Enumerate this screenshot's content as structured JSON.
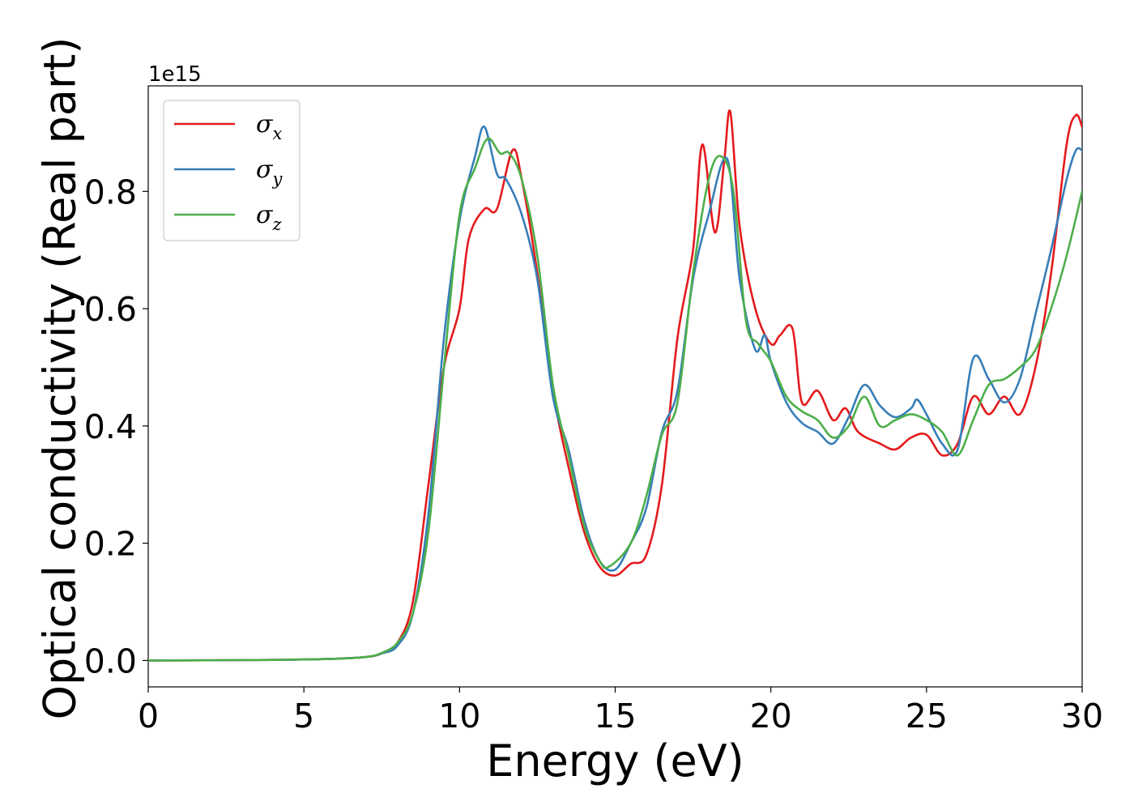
{
  "chart_data": {
    "type": "line",
    "xlabel": "Energy (eV)",
    "ylabel": "Optical conductivity (Real part)",
    "y_offset_label": "1e15",
    "xlim": [
      0,
      30
    ],
    "ylim": [
      -0.045,
      0.98
    ],
    "x_ticks": [
      0,
      5,
      10,
      15,
      20,
      25,
      30
    ],
    "x_tick_labels": [
      "0",
      "5",
      "10",
      "15",
      "20",
      "25",
      "30"
    ],
    "y_ticks": [
      0.0,
      0.2,
      0.4,
      0.6,
      0.8
    ],
    "y_tick_labels": [
      "0.0",
      "0.2",
      "0.4",
      "0.6",
      "0.8"
    ],
    "grid": false,
    "legend_position": "top-left",
    "series": [
      {
        "name": "σ",
        "subscript": "x",
        "color": "#e41a1c",
        "points": [
          [
            0,
            0
          ],
          [
            4,
            0.001
          ],
          [
            6,
            0.003
          ],
          [
            7,
            0.006
          ],
          [
            7.5,
            0.012
          ],
          [
            8,
            0.03
          ],
          [
            8.5,
            0.1
          ],
          [
            9,
            0.3
          ],
          [
            9.5,
            0.5
          ],
          [
            10,
            0.6
          ],
          [
            10.3,
            0.72
          ],
          [
            10.8,
            0.77
          ],
          [
            11.2,
            0.77
          ],
          [
            11.7,
            0.87
          ],
          [
            12,
            0.82
          ],
          [
            12.5,
            0.66
          ],
          [
            13,
            0.46
          ],
          [
            13.5,
            0.33
          ],
          [
            14,
            0.22
          ],
          [
            14.5,
            0.16
          ],
          [
            15,
            0.145
          ],
          [
            15.5,
            0.165
          ],
          [
            16,
            0.18
          ],
          [
            16.5,
            0.3
          ],
          [
            17,
            0.55
          ],
          [
            17.5,
            0.7
          ],
          [
            17.8,
            0.88
          ],
          [
            18.2,
            0.73
          ],
          [
            18.5,
            0.85
          ],
          [
            18.7,
            0.935
          ],
          [
            19,
            0.74
          ],
          [
            19.5,
            0.6
          ],
          [
            20,
            0.54
          ],
          [
            20.3,
            0.555
          ],
          [
            20.7,
            0.565
          ],
          [
            21,
            0.44
          ],
          [
            21.5,
            0.46
          ],
          [
            22,
            0.41
          ],
          [
            22.4,
            0.43
          ],
          [
            22.8,
            0.39
          ],
          [
            23.5,
            0.37
          ],
          [
            24,
            0.36
          ],
          [
            24.5,
            0.38
          ],
          [
            25,
            0.385
          ],
          [
            25.5,
            0.35
          ],
          [
            26,
            0.37
          ],
          [
            26.5,
            0.45
          ],
          [
            27,
            0.42
          ],
          [
            27.5,
            0.45
          ],
          [
            28,
            0.42
          ],
          [
            28.5,
            0.5
          ],
          [
            29,
            0.66
          ],
          [
            29.5,
            0.88
          ],
          [
            29.8,
            0.93
          ],
          [
            30,
            0.91
          ]
        ]
      },
      {
        "name": "σ",
        "subscript": "y",
        "color": "#377eb8",
        "points": [
          [
            0,
            0
          ],
          [
            4,
            0.001
          ],
          [
            6,
            0.003
          ],
          [
            7,
            0.006
          ],
          [
            7.5,
            0.012
          ],
          [
            8,
            0.025
          ],
          [
            8.5,
            0.08
          ],
          [
            9,
            0.25
          ],
          [
            9.5,
            0.55
          ],
          [
            10,
            0.75
          ],
          [
            10.5,
            0.86
          ],
          [
            10.8,
            0.91
          ],
          [
            11.2,
            0.83
          ],
          [
            11.5,
            0.82
          ],
          [
            12,
            0.76
          ],
          [
            12.5,
            0.65
          ],
          [
            13,
            0.45
          ],
          [
            13.5,
            0.36
          ],
          [
            14,
            0.24
          ],
          [
            14.5,
            0.17
          ],
          [
            15,
            0.155
          ],
          [
            15.5,
            0.2
          ],
          [
            16,
            0.26
          ],
          [
            16.5,
            0.39
          ],
          [
            17,
            0.46
          ],
          [
            17.5,
            0.65
          ],
          [
            18,
            0.76
          ],
          [
            18.6,
            0.855
          ],
          [
            19,
            0.65
          ],
          [
            19.5,
            0.53
          ],
          [
            19.8,
            0.555
          ],
          [
            20,
            0.51
          ],
          [
            20.5,
            0.44
          ],
          [
            21,
            0.405
          ],
          [
            21.5,
            0.39
          ],
          [
            22,
            0.37
          ],
          [
            22.5,
            0.415
          ],
          [
            23,
            0.47
          ],
          [
            23.5,
            0.435
          ],
          [
            24,
            0.415
          ],
          [
            24.5,
            0.43
          ],
          [
            24.7,
            0.445
          ],
          [
            25,
            0.42
          ],
          [
            25.5,
            0.37
          ],
          [
            26,
            0.36
          ],
          [
            26.5,
            0.515
          ],
          [
            27,
            0.48
          ],
          [
            27.5,
            0.44
          ],
          [
            28,
            0.48
          ],
          [
            28.5,
            0.59
          ],
          [
            29,
            0.7
          ],
          [
            29.5,
            0.82
          ],
          [
            29.8,
            0.87
          ],
          [
            30,
            0.87
          ]
        ]
      },
      {
        "name": "σ",
        "subscript": "z",
        "color": "#4daf4a",
        "points": [
          [
            0,
            0
          ],
          [
            4,
            0.001
          ],
          [
            6,
            0.003
          ],
          [
            7,
            0.006
          ],
          [
            7.5,
            0.013
          ],
          [
            8,
            0.03
          ],
          [
            8.5,
            0.08
          ],
          [
            9,
            0.22
          ],
          [
            9.5,
            0.5
          ],
          [
            10,
            0.76
          ],
          [
            10.5,
            0.84
          ],
          [
            10.9,
            0.89
          ],
          [
            11.3,
            0.865
          ],
          [
            11.6,
            0.865
          ],
          [
            12,
            0.82
          ],
          [
            12.5,
            0.69
          ],
          [
            13,
            0.47
          ],
          [
            13.5,
            0.35
          ],
          [
            14,
            0.23
          ],
          [
            14.5,
            0.17
          ],
          [
            14.8,
            0.16
          ],
          [
            15.5,
            0.2
          ],
          [
            16,
            0.28
          ],
          [
            16.5,
            0.385
          ],
          [
            17,
            0.44
          ],
          [
            17.5,
            0.66
          ],
          [
            18,
            0.82
          ],
          [
            18.4,
            0.86
          ],
          [
            18.8,
            0.8
          ],
          [
            19.2,
            0.58
          ],
          [
            19.6,
            0.54
          ],
          [
            20,
            0.51
          ],
          [
            20.5,
            0.45
          ],
          [
            21,
            0.425
          ],
          [
            21.5,
            0.41
          ],
          [
            22,
            0.38
          ],
          [
            22.5,
            0.4
          ],
          [
            23,
            0.45
          ],
          [
            23.5,
            0.4
          ],
          [
            24,
            0.41
          ],
          [
            24.5,
            0.42
          ],
          [
            25,
            0.41
          ],
          [
            25.5,
            0.39
          ],
          [
            26,
            0.35
          ],
          [
            26.5,
            0.41
          ],
          [
            27,
            0.47
          ],
          [
            27.5,
            0.48
          ],
          [
            28,
            0.5
          ],
          [
            28.5,
            0.53
          ],
          [
            29,
            0.6
          ],
          [
            29.5,
            0.69
          ],
          [
            30,
            0.8
          ]
        ]
      }
    ]
  }
}
